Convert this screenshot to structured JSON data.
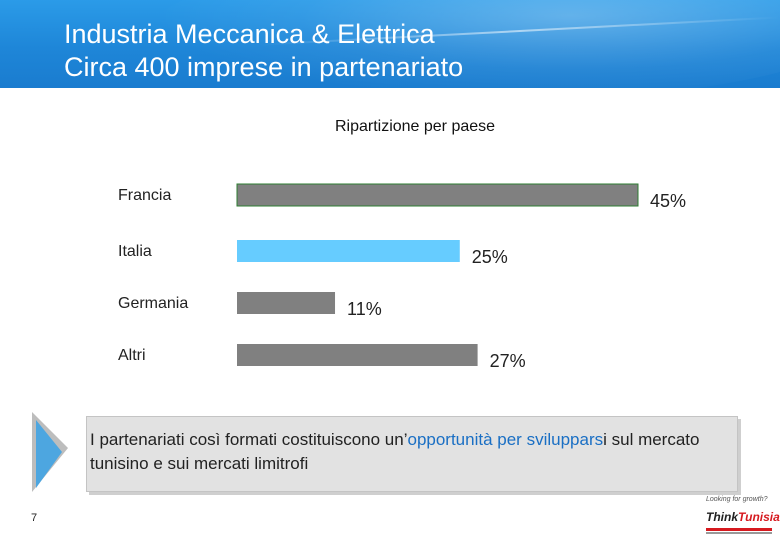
{
  "header": {
    "title_line1": "Industria Meccanica & Elettrica",
    "title_line2": "Circa 400 imprese in partenariato"
  },
  "chart_data": {
    "type": "bar",
    "orientation": "horizontal",
    "title": "Ripartizione per paese",
    "categories": [
      "Francia",
      "Italia",
      "Germania",
      "Altri"
    ],
    "values": [
      45,
      25,
      11,
      27
    ],
    "value_labels": [
      "45%",
      "25%",
      "11%",
      "27%"
    ],
    "bar_colors": [
      "#808080",
      "#66ccff",
      "#808080",
      "#808080"
    ],
    "xlim": [
      0,
      45
    ],
    "grid": false,
    "legend": "none"
  },
  "callout": {
    "part1": "I partenariati così formati costituiscono un’",
    "part2_highlight": "opportunità per sviluppars",
    "part3": "i sul mercato tunisino e sui mercati limitrofi"
  },
  "page_number": "7",
  "logo": {
    "tagline": "Looking for growth?",
    "brand_part1": "Think",
    "brand_part2": "Tunisia"
  },
  "colors": {
    "header_blue": "#1e86d8",
    "highlight_blue": "#1a6fc4",
    "bar_gray": "#808080",
    "bar_cyan": "#66ccff"
  }
}
